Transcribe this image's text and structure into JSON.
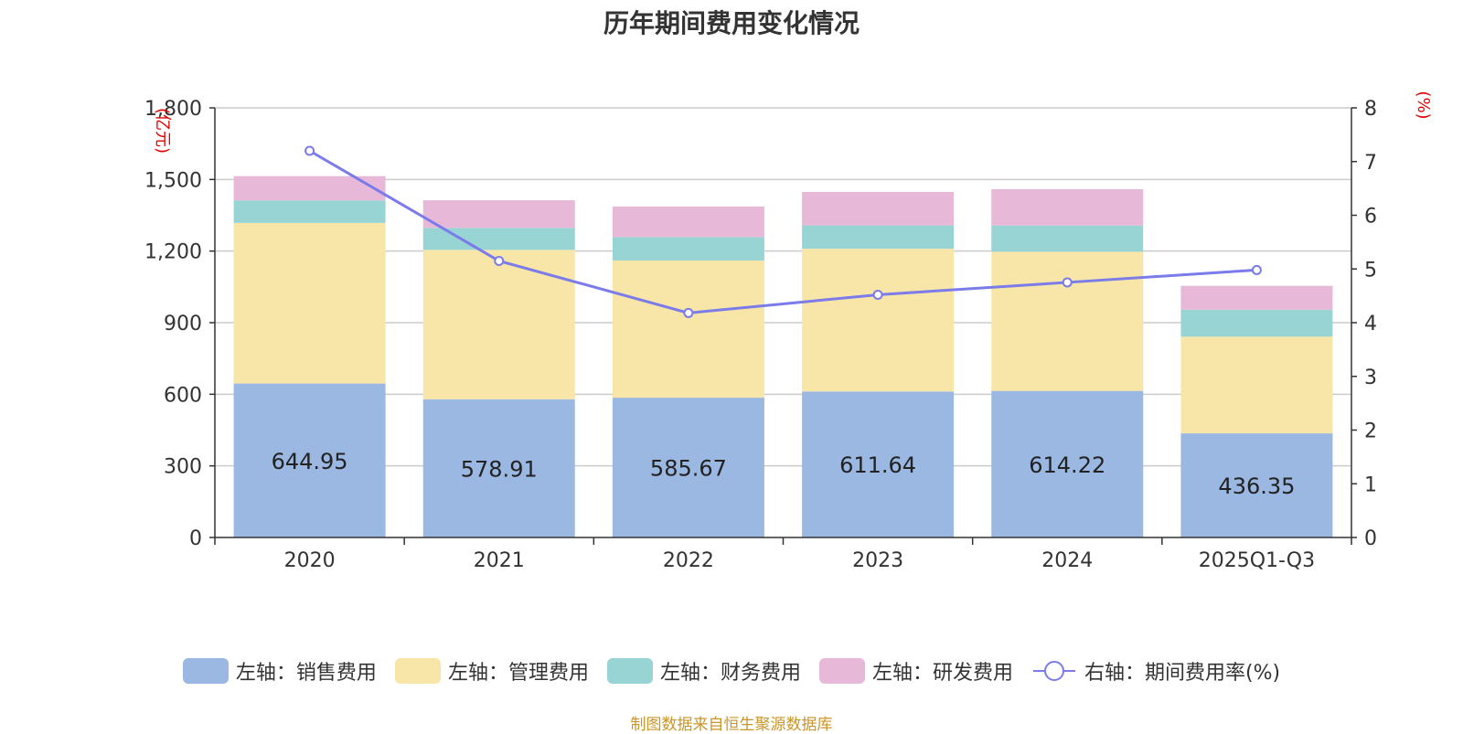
{
  "chart_data": {
    "type": "bar",
    "title": "历年期间费用变化情况",
    "categories": [
      "2020",
      "2021",
      "2022",
      "2023",
      "2024",
      "2025Q1-Q3"
    ],
    "left_axis": {
      "label": "(亿元)",
      "ylim": [
        0,
        1800
      ],
      "ticks": [
        "0",
        "300",
        "600",
        "900",
        "1,200",
        "1,500",
        "1,800"
      ],
      "tick_values": [
        0,
        300,
        600,
        900,
        1200,
        1500,
        1800
      ]
    },
    "right_axis": {
      "label": "(%)",
      "ylim": [
        0,
        8
      ],
      "ticks": [
        "0",
        "1",
        "2",
        "3",
        "4",
        "5",
        "6",
        "7",
        "8"
      ],
      "tick_values": [
        0,
        1,
        2,
        3,
        4,
        5,
        6,
        7,
        8
      ]
    },
    "series": [
      {
        "name": "左轴：销售费用",
        "axis": "left",
        "kind": "bar",
        "color": "#9bb8e2",
        "values": [
          644.95,
          578.91,
          585.67,
          611.64,
          614.22,
          436.35
        ],
        "labels": [
          "644.95",
          "578.91",
          "585.67",
          "611.64",
          "614.22",
          "436.35"
        ]
      },
      {
        "name": "左轴：管理费用",
        "axis": "left",
        "kind": "bar",
        "color": "#f8e6a8",
        "values": [
          673,
          626,
          575,
          598,
          583,
          405
        ]
      },
      {
        "name": "左轴：财务费用",
        "axis": "left",
        "kind": "bar",
        "color": "#98d4d4",
        "values": [
          94,
          92,
          98,
          98,
          110,
          113
        ]
      },
      {
        "name": "左轴：研发费用",
        "axis": "left",
        "kind": "bar",
        "color": "#e8b8d8",
        "values": [
          102,
          116,
          128,
          140,
          152,
          100
        ]
      },
      {
        "name": "右轴：期间费用率(%)",
        "axis": "right",
        "kind": "line",
        "color": "#7b7bea",
        "values": [
          7.2,
          5.15,
          4.18,
          4.52,
          4.75,
          4.98
        ]
      }
    ],
    "source": "制图数据来自恒生聚源数据库"
  }
}
